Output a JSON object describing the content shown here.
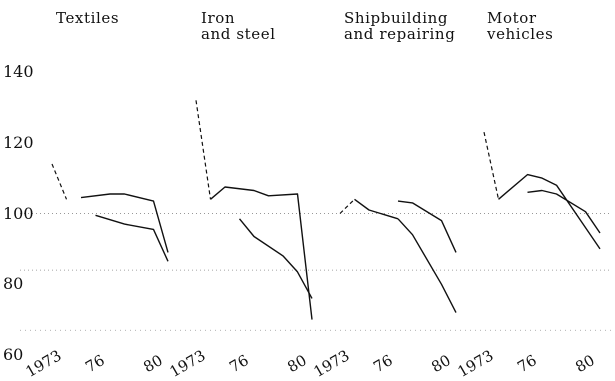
{
  "chart_data": {
    "type": "line",
    "ylim": [
      60,
      140
    ],
    "yticks": [
      "140",
      "120",
      "100",
      "80",
      "60"
    ],
    "panels": [
      {
        "title": [
          "Textiles"
        ],
        "x_tick_labels": [
          "1973",
          "76",
          "80"
        ],
        "series": [
          {
            "style": "dashed",
            "x": [
              1973,
              1974
            ],
            "y": [
              114,
              104
            ]
          },
          {
            "style": "solid",
            "x": [
              1975,
              1977,
              1978,
              1980,
              1981
            ],
            "y": [
              104.5,
              105.5,
              105.5,
              103.5,
              89
            ]
          },
          {
            "style": "solid",
            "x": [
              1976,
              1978,
              1980,
              1981
            ],
            "y": [
              99.5,
              97,
              95.5,
              86.5
            ]
          }
        ]
      },
      {
        "title": [
          "Iron",
          "and steel"
        ],
        "x_tick_labels": [
          "1973",
          "76",
          "80"
        ],
        "series": [
          {
            "style": "dashed",
            "x": [
              1973,
              1974
            ],
            "y": [
              132,
              104
            ]
          },
          {
            "style": "solid",
            "x": [
              1974,
              1975,
              1977,
              1978,
              1980,
              1981
            ],
            "y": [
              104,
              107.5,
              106.5,
              105,
              105.5,
              70
            ]
          },
          {
            "style": "solid",
            "x": [
              1976,
              1977,
              1979,
              1980,
              1981
            ],
            "y": [
              98.5,
              93.5,
              88,
              83.5,
              76
            ]
          }
        ]
      },
      {
        "title": [
          "Shipbuilding",
          "and repairing"
        ],
        "x_tick_labels": [
          "1973",
          "76",
          "80"
        ],
        "series": [
          {
            "style": "dashed",
            "x": [
              1973,
              1974
            ],
            "y": [
              100,
              104
            ]
          },
          {
            "style": "solid",
            "x": [
              1974,
              1975,
              1977
            ],
            "y": [
              104,
              101,
              98.5
            ]
          },
          {
            "style": "solid",
            "x": [
              1977,
              1978,
              1980,
              1981
            ],
            "y": [
              103.5,
              103,
              98,
              89
            ]
          },
          {
            "style": "solid",
            "x": [
              1977,
              1978,
              1980,
              1981
            ],
            "y": [
              98.5,
              94,
              80,
              72
            ]
          }
        ]
      },
      {
        "title": [
          "Motor",
          "vehicles"
        ],
        "x_tick_labels": [
          "1973",
          "76",
          "80"
        ],
        "series": [
          {
            "style": "dashed",
            "x": [
              1973,
              1974
            ],
            "y": [
              123,
              104
            ]
          },
          {
            "style": "solid",
            "x": [
              1974,
              1976,
              1977,
              1978,
              1980,
              1981
            ],
            "y": [
              104,
              111,
              110,
              108,
              96,
              90
            ]
          },
          {
            "style": "solid",
            "x": [
              1976,
              1977,
              1978,
              1980,
              1981
            ],
            "y": [
              106,
              106.5,
              105.5,
              100.5,
              94.5
            ]
          }
        ]
      }
    ]
  }
}
